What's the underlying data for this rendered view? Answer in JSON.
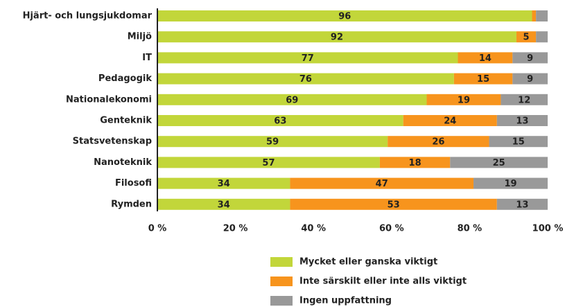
{
  "chart_data": {
    "type": "stacked_bar_horizontal",
    "categories": [
      "Hjärt- och lungsjukdomar",
      "Miljö",
      "IT",
      "Pedagogik",
      "Nationalekonomi",
      "Genteknik",
      "Statsvetenskap",
      "Nanoteknik",
      "Filosofi",
      "Rymden"
    ],
    "series": [
      {
        "name": "Mycket eller ganska viktigt",
        "color": "#c2d63a",
        "values": [
          96,
          92,
          77,
          76,
          69,
          63,
          59,
          57,
          34,
          34
        ]
      },
      {
        "name": "Inte särskilt eller inte alls viktigt",
        "color": "#f7941d",
        "values": [
          1,
          5,
          14,
          15,
          19,
          24,
          26,
          18,
          47,
          53
        ],
        "value_labels": [
          null,
          "5",
          "14",
          "15",
          "19",
          "24",
          "26",
          "18",
          "47",
          "53"
        ]
      },
      {
        "name": "Ingen uppfattning",
        "color": "#999999",
        "values": [
          3,
          3,
          9,
          9,
          12,
          13,
          15,
          25,
          19,
          13
        ],
        "value_labels": [
          null,
          null,
          "9",
          "9",
          "12",
          "13",
          "15",
          "25",
          "19",
          "13"
        ]
      }
    ],
    "xlim": [
      0,
      100
    ],
    "xticks": [
      {
        "value": 0,
        "label": "0 %"
      },
      {
        "value": 20,
        "label": "20 %"
      },
      {
        "value": 40,
        "label": "40 %"
      },
      {
        "value": 60,
        "label": "60 %"
      },
      {
        "value": 80,
        "label": "80 %"
      },
      {
        "value": 100,
        "label": "100 %"
      }
    ],
    "legend": "bottom"
  }
}
